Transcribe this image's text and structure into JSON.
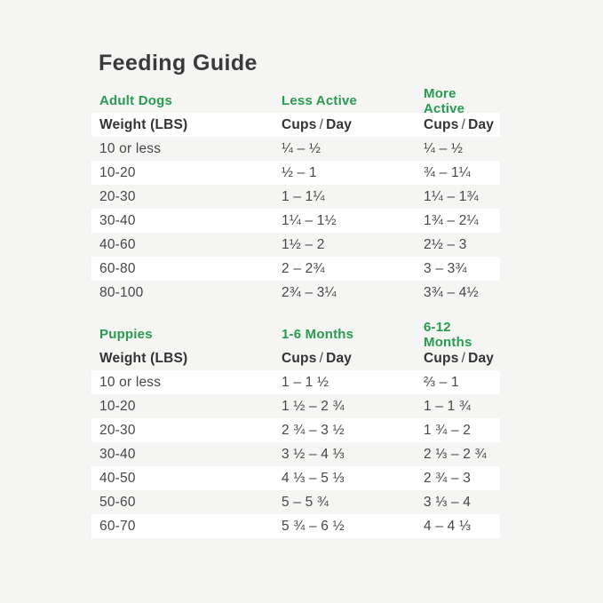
{
  "page": {
    "title": "Feeding Guide"
  },
  "colors": {
    "accent_green": "#289b50",
    "page_background": "#f5f5f4",
    "row_highlight": "#ffffff",
    "title_text": "#3a3a3a",
    "body_text": "#474747"
  },
  "tables": [
    {
      "section": {
        "col1": "Adult Dogs",
        "col2": "Less Active",
        "col3": "More Active"
      },
      "header": {
        "col1": "Weight (LBS)",
        "cups": "Cups",
        "slash": "/",
        "day": "Day"
      },
      "rows": [
        {
          "col1": "10 or less",
          "col2": "¼ – ½",
          "col3": "¼ – ½",
          "white": false
        },
        {
          "col1": "10-20",
          "col2": "½ – 1",
          "col3": "¾ – 1¼",
          "white": true
        },
        {
          "col1": "20-30",
          "col2": "1 – 1¼",
          "col3": "1¼ – 1¾",
          "white": false
        },
        {
          "col1": "30-40",
          "col2": "1¼ – 1½",
          "col3": "1¾ – 2¼",
          "white": true
        },
        {
          "col1": "40-60",
          "col2": "1½ – 2",
          "col3": "2½ – 3",
          "white": false
        },
        {
          "col1": "60-80",
          "col2": "2 – 2¾",
          "col3": "3 – 3¾",
          "white": true
        },
        {
          "col1": "80-100",
          "col2": "2¾ – 3¼",
          "col3": "3¾ – 4½",
          "white": false
        }
      ]
    },
    {
      "section": {
        "col1": "Puppies",
        "col2": "1-6 Months",
        "col3": "6-12 Months"
      },
      "header": {
        "col1": "Weight (LBS)",
        "cups": "Cups",
        "slash": "/",
        "day": "Day"
      },
      "rows": [
        {
          "col1": "10 or less",
          "col2": "1 – 1 ½",
          "col3": "⅔ – 1",
          "white": true
        },
        {
          "col1": "10-20",
          "col2": "1 ½ – 2 ¾",
          "col3": "1 – 1 ¾",
          "white": false
        },
        {
          "col1": "20-30",
          "col2": "2 ¾ – 3 ½",
          "col3": "1 ¾ – 2",
          "white": true
        },
        {
          "col1": "30-40",
          "col2": "3 ½ – 4 ⅓",
          "col3": "2 ⅓ – 2 ¾",
          "white": false
        },
        {
          "col1": "40-50",
          "col2": "4 ⅓ – 5 ⅓",
          "col3": "2 ¾ – 3",
          "white": true
        },
        {
          "col1": "50-60",
          "col2": "5 – 5 ¾",
          "col3": "3 ⅓ – 4",
          "white": false
        },
        {
          "col1": "60-70",
          "col2": "5 ¾ – 6 ½",
          "col3": "4 – 4 ⅓",
          "white": true
        }
      ]
    }
  ]
}
